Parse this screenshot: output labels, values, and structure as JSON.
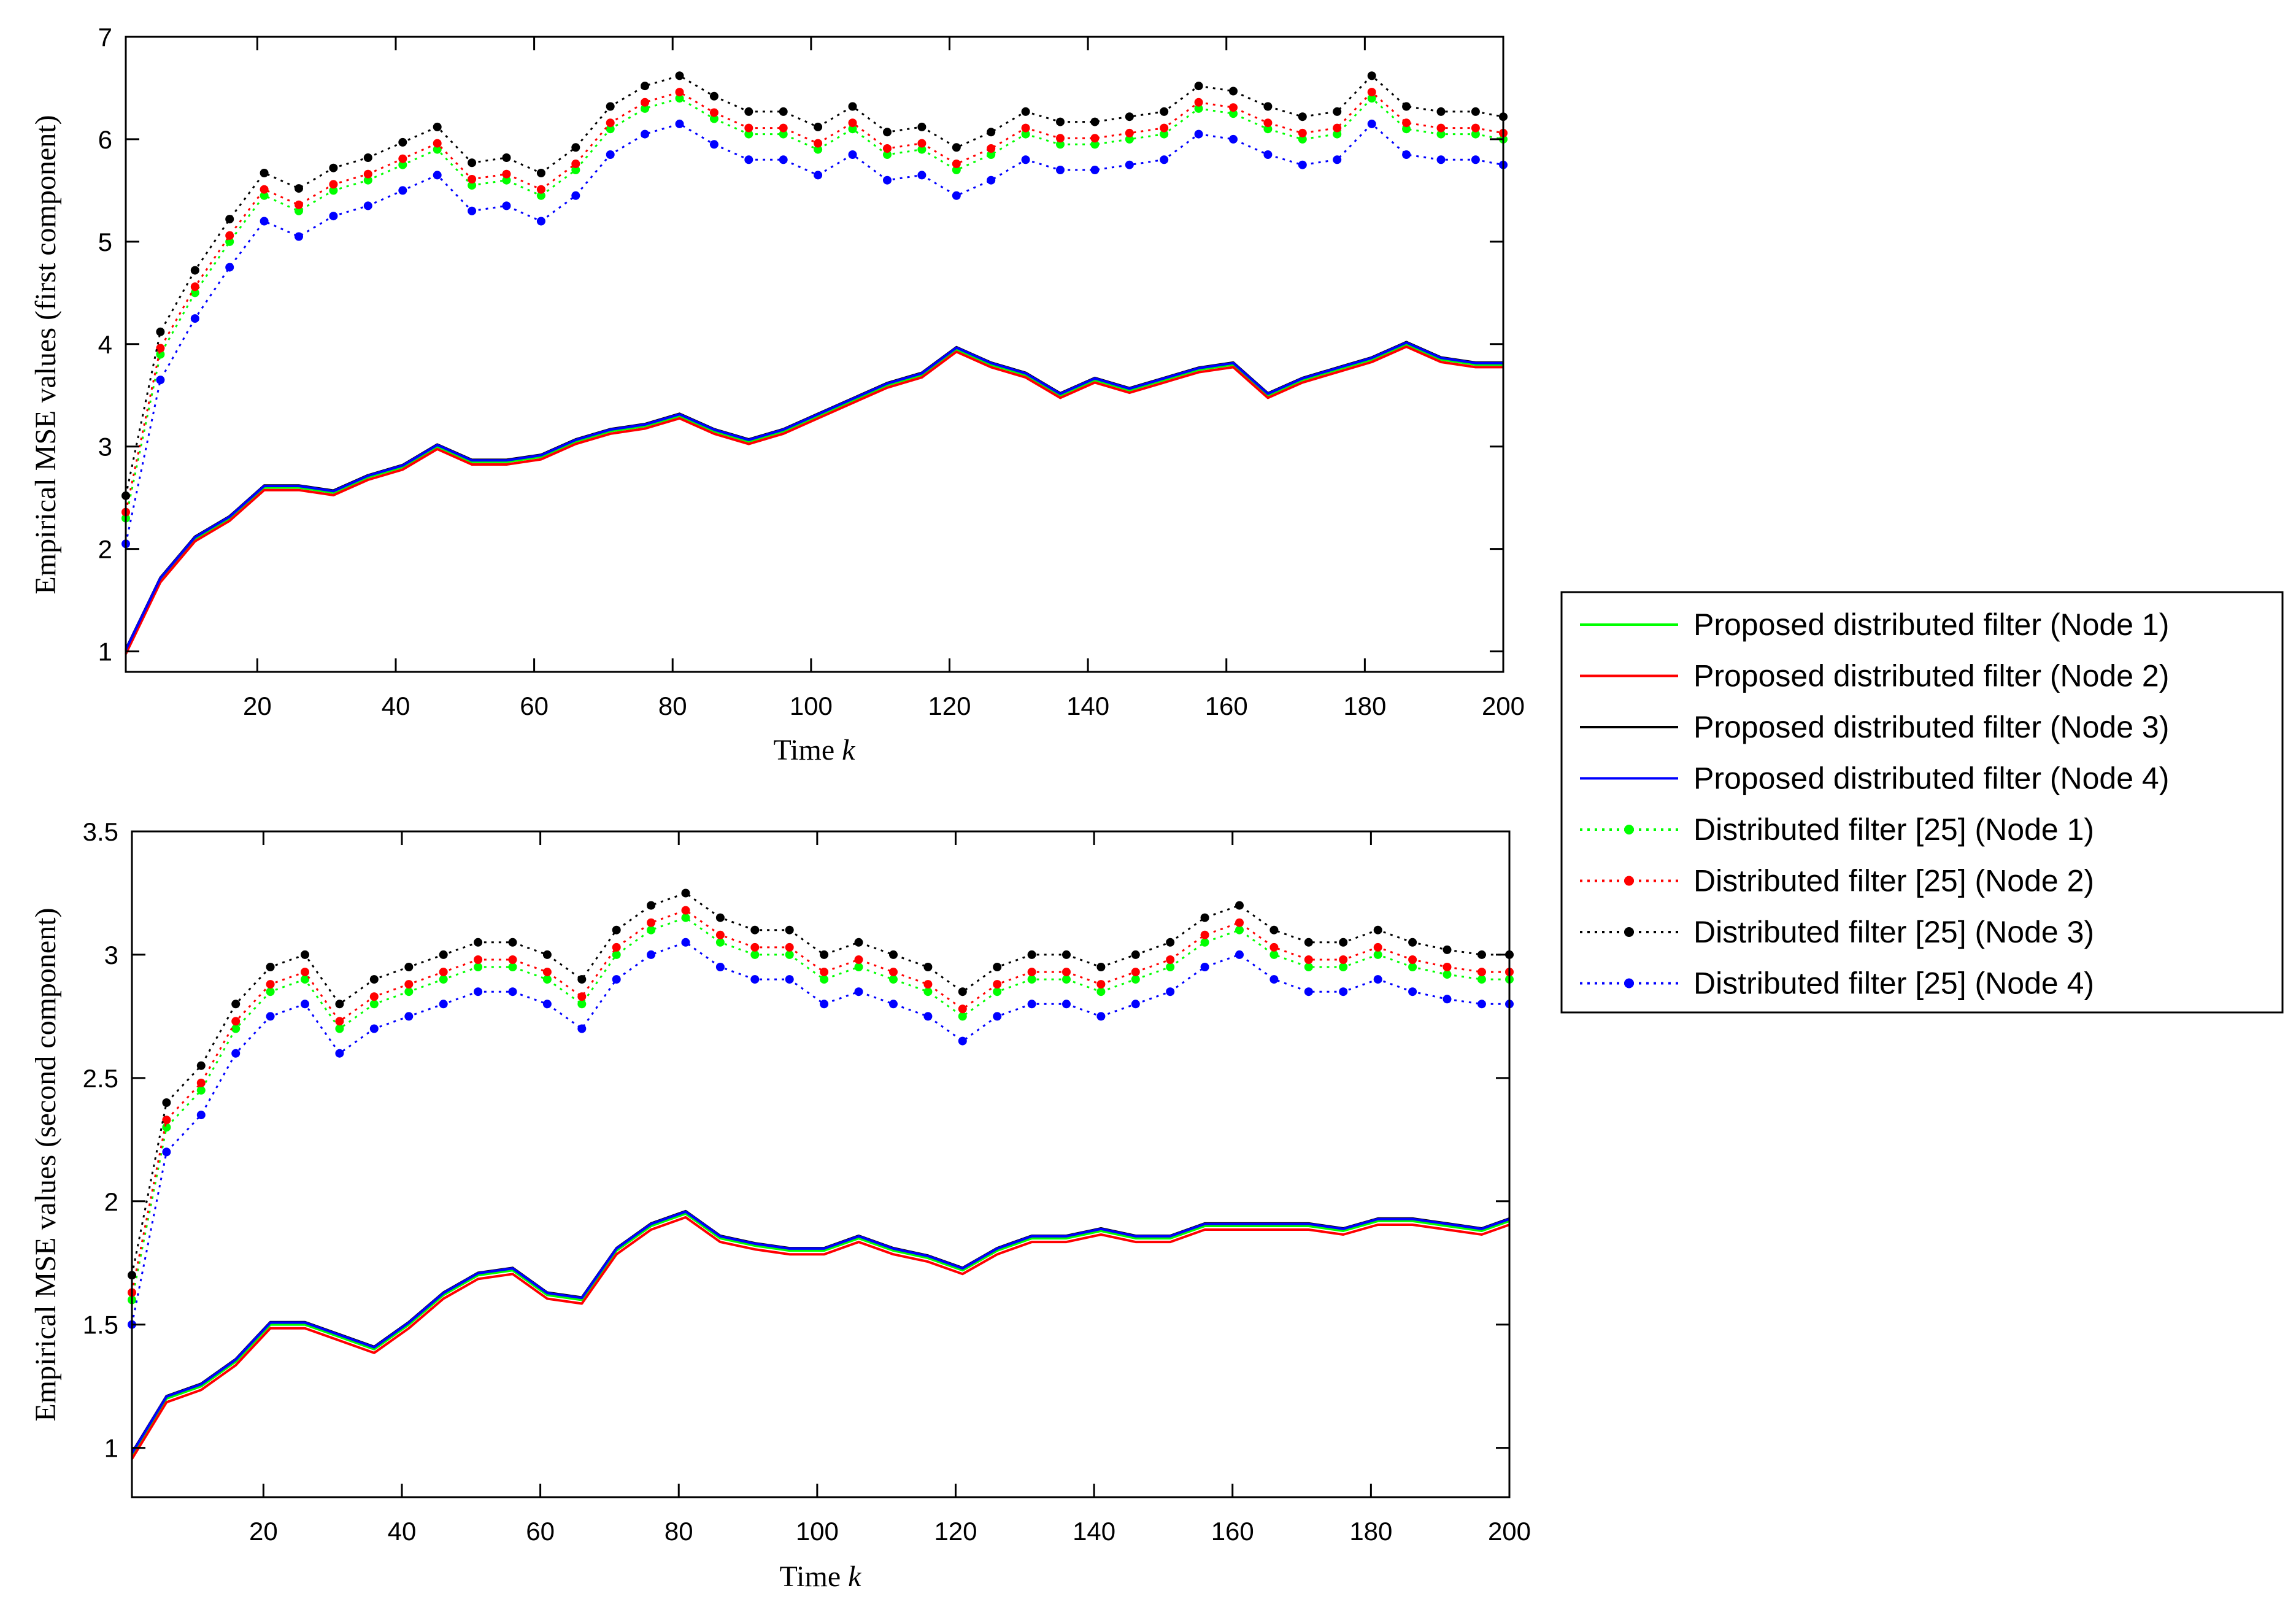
{
  "chart_data": [
    {
      "type": "line",
      "panel": "top",
      "xlabel": "Time",
      "xlabel_var": "k",
      "ylabel": "Empirical MSE values (first component)",
      "xlim": [
        1,
        200
      ],
      "ylim": [
        0.8,
        7
      ],
      "xticks": [
        20,
        40,
        60,
        80,
        100,
        120,
        140,
        160,
        180,
        200
      ],
      "yticks": [
        1,
        2,
        3,
        4,
        5,
        6,
        7
      ],
      "ytick_labels": [
        "1",
        "2",
        "3",
        "4",
        "5",
        "6",
        "7"
      ],
      "x_step": 5,
      "proposed": {
        "values": [
          1.0,
          1.7,
          2.1,
          2.3,
          2.6,
          2.6,
          2.55,
          2.7,
          2.8,
          3.0,
          2.85,
          2.85,
          2.9,
          3.05,
          3.15,
          3.2,
          3.3,
          3.15,
          3.05,
          3.15,
          3.3,
          3.45,
          3.6,
          3.7,
          3.95,
          3.8,
          3.7,
          3.5,
          3.65,
          3.55,
          3.65,
          3.75,
          3.8,
          3.5,
          3.65,
          3.75,
          3.85,
          4.0,
          3.85,
          3.8,
          3.8
        ],
        "offsets": [
          0.0,
          -0.025,
          0.02,
          0.015
        ]
      },
      "reference": {
        "values": [
          2.3,
          3.9,
          4.5,
          5.0,
          5.45,
          5.3,
          5.5,
          5.6,
          5.75,
          5.9,
          5.55,
          5.6,
          5.45,
          5.7,
          6.1,
          6.3,
          6.4,
          6.2,
          6.05,
          6.05,
          5.9,
          6.1,
          5.85,
          5.9,
          5.7,
          5.85,
          6.05,
          5.95,
          5.95,
          6.0,
          6.05,
          6.3,
          6.25,
          6.1,
          6.0,
          6.05,
          6.4,
          6.1,
          6.05,
          6.05,
          6.0
        ],
        "offsets": [
          0.0,
          0.06,
          0.22,
          -0.25
        ]
      },
      "series": [
        {
          "name": "Proposed distributed filter (Node 1)",
          "group": "proposed",
          "node": 0,
          "color": "#00ff00",
          "style": "solid"
        },
        {
          "name": "Proposed distributed filter (Node 2)",
          "group": "proposed",
          "node": 1,
          "color": "#ff0000",
          "style": "solid"
        },
        {
          "name": "Proposed distributed filter (Node 3)",
          "group": "proposed",
          "node": 2,
          "color": "#000000",
          "style": "solid"
        },
        {
          "name": "Proposed distributed filter (Node 4)",
          "group": "proposed",
          "node": 3,
          "color": "#0000ff",
          "style": "solid"
        },
        {
          "name": "Distributed filter [25] (Node 1)",
          "group": "reference",
          "node": 0,
          "color": "#00ff00",
          "style": "dotted"
        },
        {
          "name": "Distributed filter [25] (Node 2)",
          "group": "reference",
          "node": 1,
          "color": "#ff0000",
          "style": "dotted"
        },
        {
          "name": "Distributed filter [25] (Node 3)",
          "group": "reference",
          "node": 2,
          "color": "#000000",
          "style": "dotted"
        },
        {
          "name": "Distributed filter [25] (Node 4)",
          "group": "reference",
          "node": 3,
          "color": "#0000ff",
          "style": "dotted"
        }
      ]
    },
    {
      "type": "line",
      "panel": "bottom",
      "xlabel": "Time",
      "xlabel_var": "k",
      "ylabel": "Empirical MSE values (second component)",
      "xlim": [
        1,
        200
      ],
      "ylim": [
        0.8,
        3.5
      ],
      "xticks": [
        20,
        40,
        60,
        80,
        100,
        120,
        140,
        160,
        180,
        200
      ],
      "yticks": [
        1,
        1.5,
        2,
        2.5,
        3,
        3.5
      ],
      "ytick_labels": [
        "1",
        "1.5",
        "2",
        "2.5",
        "3",
        "3.5"
      ],
      "x_step": 5,
      "proposed": {
        "values": [
          0.97,
          1.2,
          1.25,
          1.35,
          1.5,
          1.5,
          1.45,
          1.4,
          1.5,
          1.62,
          1.7,
          1.72,
          1.62,
          1.6,
          1.8,
          1.9,
          1.95,
          1.85,
          1.82,
          1.8,
          1.8,
          1.85,
          1.8,
          1.77,
          1.72,
          1.8,
          1.85,
          1.85,
          1.88,
          1.85,
          1.85,
          1.9,
          1.9,
          1.9,
          1.9,
          1.88,
          1.92,
          1.92,
          1.9,
          1.88,
          1.92
        ],
        "offsets": [
          0.0,
          -0.015,
          0.01,
          0.008
        ]
      },
      "reference": {
        "values": [
          1.6,
          2.3,
          2.45,
          2.7,
          2.85,
          2.9,
          2.7,
          2.8,
          2.85,
          2.9,
          2.95,
          2.95,
          2.9,
          2.8,
          3.0,
          3.1,
          3.15,
          3.05,
          3.0,
          3.0,
          2.9,
          2.95,
          2.9,
          2.85,
          2.75,
          2.85,
          2.9,
          2.9,
          2.85,
          2.9,
          2.95,
          3.05,
          3.1,
          3.0,
          2.95,
          2.95,
          3.0,
          2.95,
          2.92,
          2.9,
          2.9
        ],
        "offsets": [
          0.0,
          0.03,
          0.1,
          -0.1
        ]
      },
      "series": [
        {
          "name": "Proposed distributed filter (Node 1)",
          "group": "proposed",
          "node": 0,
          "color": "#00ff00",
          "style": "solid"
        },
        {
          "name": "Proposed distributed filter (Node 2)",
          "group": "proposed",
          "node": 1,
          "color": "#ff0000",
          "style": "solid"
        },
        {
          "name": "Proposed distributed filter (Node 3)",
          "group": "proposed",
          "node": 2,
          "color": "#000000",
          "style": "solid"
        },
        {
          "name": "Proposed distributed filter (Node 4)",
          "group": "proposed",
          "node": 3,
          "color": "#0000ff",
          "style": "solid"
        },
        {
          "name": "Distributed filter [25] (Node 1)",
          "group": "reference",
          "node": 0,
          "color": "#00ff00",
          "style": "dotted"
        },
        {
          "name": "Distributed filter [25] (Node 2)",
          "group": "reference",
          "node": 1,
          "color": "#ff0000",
          "style": "dotted"
        },
        {
          "name": "Distributed filter [25] (Node 3)",
          "group": "reference",
          "node": 2,
          "color": "#000000",
          "style": "dotted"
        },
        {
          "name": "Distributed filter [25] (Node 4)",
          "group": "reference",
          "node": 3,
          "color": "#0000ff",
          "style": "dotted"
        }
      ]
    }
  ],
  "legend": {
    "placement": "right",
    "items": [
      {
        "label": "Proposed distributed filter (Node 1)",
        "color": "#00ff00",
        "style": "solid"
      },
      {
        "label": "Proposed distributed filter (Node 2)",
        "color": "#ff0000",
        "style": "solid"
      },
      {
        "label": "Proposed distributed filter (Node 3)",
        "color": "#000000",
        "style": "solid"
      },
      {
        "label": "Proposed distributed filter (Node 4)",
        "color": "#0000ff",
        "style": "solid"
      },
      {
        "label": "Distributed filter [25] (Node 1)",
        "color": "#00ff00",
        "style": "dotted"
      },
      {
        "label": "Distributed filter [25] (Node 2)",
        "color": "#ff0000",
        "style": "dotted"
      },
      {
        "label": "Distributed filter [25] (Node 3)",
        "color": "#000000",
        "style": "dotted"
      },
      {
        "label": "Distributed filter [25] (Node 4)",
        "color": "#0000ff",
        "style": "dotted"
      }
    ]
  }
}
